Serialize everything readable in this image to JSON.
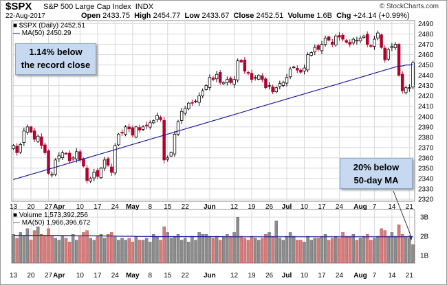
{
  "header": {
    "ticker": "$SPX",
    "company": "S&P 500 Large Cap Index",
    "exchange": "INDX",
    "copyright": "© StockCharts.com",
    "date": "22-Aug-2017",
    "open_label": "Open",
    "open": "2433.75",
    "high_label": "High",
    "high": "2454.77",
    "low_label": "Low",
    "low": "2433.67",
    "close_label": "Close",
    "close": "2452.51",
    "volume_label": "Volume",
    "volume": "1.6B",
    "chg_label": "Chg",
    "chg": "+24.14 (+0.99%)"
  },
  "price_legend": {
    "series": "$SPX (Daily) 2452.51",
    "ma": "MA(50) 2450.29"
  },
  "volume_legend": {
    "series": "Volume 1,573,392,256",
    "ma": "MA(50) 1,966,396,672"
  },
  "callouts": {
    "record": [
      "1.14% below",
      "the record close"
    ],
    "ma": [
      "20% below",
      "50-day MA"
    ]
  },
  "colors": {
    "up": "#000000",
    "down": "#b5002c",
    "ma": "#1a1a9e",
    "vol_up": "#8c8c8c",
    "vol_down": "#d97a7a",
    "grid": "#d8d8d8",
    "callout_bg": "#c6d9f1",
    "arrow": "#333333"
  },
  "x_axis_labels": [
    {
      "label": "13",
      "i": 0
    },
    {
      "label": "20",
      "i": 5
    },
    {
      "label": "27",
      "i": 10
    },
    {
      "label": "Apr",
      "i": 13,
      "bold": true
    },
    {
      "label": "10",
      "i": 19
    },
    {
      "label": "17",
      "i": 24
    },
    {
      "label": "24",
      "i": 29
    },
    {
      "label": "May",
      "i": 34,
      "bold": true
    },
    {
      "label": "8",
      "i": 39
    },
    {
      "label": "15",
      "i": 44
    },
    {
      "label": "22",
      "i": 49
    },
    {
      "label": "Jun",
      "i": 56,
      "bold": true
    },
    {
      "label": "12",
      "i": 63
    },
    {
      "label": "19",
      "i": 68
    },
    {
      "label": "26",
      "i": 73
    },
    {
      "label": "Jul",
      "i": 78,
      "bold": true
    },
    {
      "label": "10",
      "i": 83
    },
    {
      "label": "17",
      "i": 88
    },
    {
      "label": "24",
      "i": 93
    },
    {
      "label": "Aug",
      "i": 99,
      "bold": true
    },
    {
      "label": "7",
      "i": 103
    },
    {
      "label": "14",
      "i": 108
    },
    {
      "label": "21",
      "i": 113
    }
  ],
  "chart_data": [
    {
      "type": "candlestick",
      "title": "$SPX S&P 500 Large Cap Index INDX",
      "ylim": [
        2318,
        2493
      ],
      "y_ticks": [
        2320,
        2330,
        2340,
        2350,
        2360,
        2370,
        2380,
        2390,
        2400,
        2410,
        2420,
        2430,
        2440,
        2450,
        2460,
        2470,
        2480,
        2490
      ],
      "close": [
        2372,
        2365,
        2373,
        2386,
        2390,
        2385,
        2378,
        2381,
        2372,
        2365,
        2345,
        2344,
        2358,
        2362,
        2365,
        2364,
        2357,
        2360,
        2366,
        2358,
        2352,
        2338,
        2340,
        2346,
        2342,
        2350,
        2358,
        2353,
        2346,
        2372,
        2383,
        2384,
        2390,
        2388,
        2382,
        2390,
        2387,
        2390,
        2391,
        2394,
        2396,
        2401,
        2397,
        2358,
        2360,
        2365,
        2383,
        2395,
        2405,
        2408,
        2413,
        2413,
        2415,
        2420,
        2425,
        2430,
        2438,
        2436,
        2441,
        2433,
        2433,
        2436,
        2433,
        2436,
        2454,
        2453,
        2444,
        2442,
        2436,
        2438,
        2440,
        2436,
        2428,
        2430,
        2424,
        2428,
        2432,
        2433,
        2438,
        2446,
        2448,
        2445,
        2443,
        2447,
        2460,
        2462,
        2467,
        2465,
        2470,
        2476,
        2474,
        2470,
        2478,
        2477,
        2475,
        2472,
        2470,
        2475,
        2474,
        2476,
        2478,
        2470,
        2468,
        2475,
        2481,
        2467,
        2455,
        2465,
        2468,
        2470,
        2440,
        2425,
        2428,
        2428,
        2452
      ],
      "ma50": [
        2339,
        2340,
        2341,
        2342,
        2343,
        2344,
        2345,
        2346,
        2347,
        2348,
        2349,
        2350,
        2351,
        2352,
        2353,
        2354,
        2355,
        2356,
        2357,
        2358,
        2359,
        2360,
        2361,
        2362,
        2363,
        2364,
        2365,
        2366,
        2367,
        2368,
        2369,
        2370,
        2371,
        2372,
        2373,
        2374,
        2375,
        2376,
        2377,
        2378,
        2379,
        2380,
        2381,
        2382,
        2383,
        2384,
        2385,
        2386,
        2387,
        2388,
        2389,
        2390,
        2391,
        2392,
        2393,
        2394,
        2395,
        2396,
        2397,
        2398,
        2399,
        2400,
        2401,
        2402,
        2403,
        2404,
        2405,
        2406,
        2407,
        2408,
        2409,
        2410,
        2411,
        2412,
        2413,
        2414,
        2415,
        2416,
        2417,
        2418,
        2419,
        2420,
        2421,
        2422,
        2423,
        2424,
        2425,
        2426,
        2427,
        2428,
        2429,
        2430,
        2431,
        2432,
        2433,
        2434,
        2435,
        2436,
        2437,
        2438,
        2439,
        2440,
        2441,
        2442,
        2443,
        2444,
        2445,
        2446,
        2447,
        2448,
        2449,
        2449,
        2450,
        2450,
        2450.29
      ]
    },
    {
      "type": "bar",
      "title": "Volume",
      "ylim": [
        0.6,
        3.4
      ],
      "y_tick_labels": [
        {
          "label": "1B",
          "v": 1
        },
        {
          "label": "2B",
          "v": 2
        },
        {
          "label": "3B",
          "v": 3
        }
      ],
      "values_billions": [
        2.1,
        1.9,
        2.2,
        2.0,
        2.4,
        1.8,
        2.3,
        2.5,
        2.1,
        2.0,
        2.4,
        2.0,
        1.9,
        1.8,
        2.0,
        1.9,
        1.7,
        2.1,
        1.8,
        2.0,
        2.2,
        2.3,
        1.9,
        1.8,
        2.0,
        2.1,
        1.9,
        2.1,
        2.2,
        2.0,
        1.8,
        1.9,
        1.8,
        1.9,
        1.7,
        2.0,
        1.8,
        1.8,
        1.9,
        1.7,
        2.1,
        2.0,
        1.8,
        2.5,
        2.2,
        1.9,
        2.0,
        2.1,
        1.8,
        1.9,
        1.7,
        2.0,
        1.8,
        2.2,
        2.1,
        2.1,
        2.0,
        1.9,
        2.0,
        1.8,
        2.0,
        2.1,
        2.0,
        2.2,
        3.0,
        2.0,
        1.9,
        1.8,
        2.0,
        1.9,
        1.8,
        1.9,
        2.1,
        2.2,
        2.0,
        2.8,
        1.9,
        1.8,
        2.0,
        2.2,
        2.0,
        1.8,
        1.8,
        1.7,
        2.0,
        1.8,
        1.9,
        1.9,
        2.0,
        2.1,
        1.8,
        1.9,
        2.0,
        1.9,
        2.2,
        2.0,
        2.0,
        2.1,
        1.8,
        1.9,
        2.0,
        2.1,
        1.8,
        1.9,
        2.0,
        2.4,
        2.3,
        2.0,
        2.2,
        2.0,
        2.6,
        2.1,
        2.0,
        1.9,
        1.57
      ],
      "ma50_billions": [
        2.05,
        2.05,
        2.05,
        2.05,
        2.05,
        2.05,
        2.05,
        2.05,
        2.05,
        2.05,
        2.05,
        2.05,
        2.05,
        2.05,
        2.04,
        2.04,
        2.04,
        2.04,
        2.03,
        2.03,
        2.03,
        2.03,
        2.02,
        2.02,
        2.02,
        2.02,
        2.01,
        2.01,
        2.01,
        2.01,
        2.0,
        2.0,
        2.0,
        2.0,
        2.0,
        1.99,
        1.99,
        1.99,
        1.99,
        1.99,
        1.98,
        1.98,
        1.98,
        1.98,
        1.98,
        1.98,
        1.98,
        1.98,
        1.98,
        1.98,
        1.98,
        1.98,
        1.98,
        1.98,
        1.98,
        1.98,
        1.98,
        1.98,
        1.98,
        1.98,
        1.97,
        1.97,
        1.97,
        1.97,
        1.97,
        1.97,
        1.97,
        1.97,
        1.97,
        1.97,
        1.97,
        1.97,
        1.97,
        1.97,
        1.97,
        1.97,
        1.97,
        1.97,
        1.97,
        1.97,
        1.97,
        1.97,
        1.97,
        1.97,
        1.97,
        1.97,
        1.97,
        1.97,
        1.97,
        1.97,
        1.97,
        1.97,
        1.97,
        1.97,
        1.97,
        1.97,
        1.97,
        1.97,
        1.97,
        1.97,
        1.97,
        1.97,
        1.97,
        1.97,
        1.97,
        1.97,
        1.97,
        1.97,
        1.97,
        1.97,
        1.97,
        1.97,
        1.97,
        1.97,
        1.97
      ]
    }
  ]
}
